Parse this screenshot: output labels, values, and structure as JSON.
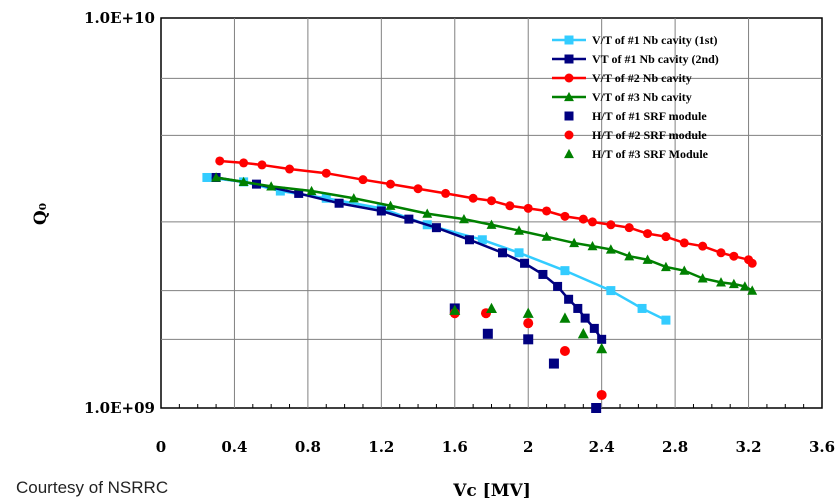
{
  "credit": "Courtesy of NSRRC",
  "chart_data": {
    "type": "scatter",
    "xlabel": "Vc [MV]",
    "ylabel": "Q₀",
    "xlim": [
      0,
      3.6
    ],
    "ylim": [
      1000000000,
      10000000000
    ],
    "y_scale": "log",
    "x_ticks": [
      0,
      0.4,
      0.8,
      1.2,
      1.6,
      2,
      2.4,
      2.8,
      3.2,
      3.6
    ],
    "x_tick_labels": [
      "0",
      "0.4",
      "0.8",
      "1.2",
      "1.6",
      "2",
      "2.4",
      "2.8",
      "3.2",
      "3.6"
    ],
    "y_tick_labels": [
      "1.0E+09",
      "1.0E+10"
    ],
    "y_gridlines": [
      1000000000,
      1500000000,
      2000000000,
      3000000000,
      5000000000,
      7000000000,
      10000000000
    ],
    "grid": true,
    "legend_position": "top-right",
    "series": [
      {
        "name": "V/T of #1 Nb cavity (1st)",
        "color": "#33ccff",
        "style": "line",
        "marker": "square",
        "x": [
          0.25,
          0.45,
          0.65,
          0.9,
          1.2,
          1.45,
          1.75,
          1.95,
          2.2,
          2.45,
          2.62,
          2.75
        ],
        "y": [
          3900000000,
          3800000000,
          3600000000,
          3450000000,
          3250000000,
          2950000000,
          2700000000,
          2500000000,
          2250000000,
          2000000000,
          1800000000,
          1680000000
        ]
      },
      {
        "name": "VT of #1 Nb cavity (2nd)",
        "color": "#000080",
        "style": "line",
        "marker": "square",
        "x": [
          0.3,
          0.52,
          0.75,
          0.97,
          1.2,
          1.35,
          1.5,
          1.68,
          1.86,
          1.98,
          2.08,
          2.16,
          2.22,
          2.27,
          2.31,
          2.36,
          2.4
        ],
        "y": [
          3900000000,
          3750000000,
          3550000000,
          3350000000,
          3200000000,
          3050000000,
          2900000000,
          2700000000,
          2500000000,
          2350000000,
          2200000000,
          2050000000,
          1900000000,
          1800000000,
          1700000000,
          1600000000,
          1500000000
        ]
      },
      {
        "name": "V/T of #2 Nb cavity",
        "color": "#ff0000",
        "style": "line",
        "marker": "circle",
        "x": [
          0.32,
          0.45,
          0.55,
          0.7,
          0.9,
          1.1,
          1.25,
          1.4,
          1.55,
          1.7,
          1.8,
          1.9,
          2.0,
          2.1,
          2.2,
          2.3,
          2.35,
          2.45,
          2.55,
          2.65,
          2.75,
          2.85,
          2.95,
          3.05,
          3.12,
          3.2,
          3.22
        ],
        "y": [
          4300000000,
          4250000000,
          4200000000,
          4100000000,
          4000000000,
          3850000000,
          3750000000,
          3650000000,
          3550000000,
          3450000000,
          3400000000,
          3300000000,
          3250000000,
          3200000000,
          3100000000,
          3050000000,
          3000000000,
          2950000000,
          2900000000,
          2800000000,
          2750000000,
          2650000000,
          2600000000,
          2500000000,
          2450000000,
          2400000000,
          2350000000
        ]
      },
      {
        "name": "V/T of #3 Nb cavity",
        "color": "#008000",
        "style": "line",
        "marker": "triangle",
        "x": [
          0.3,
          0.45,
          0.6,
          0.82,
          1.05,
          1.25,
          1.45,
          1.65,
          1.8,
          1.95,
          2.1,
          2.25,
          2.35,
          2.45,
          2.55,
          2.65,
          2.75,
          2.85,
          2.95,
          3.05,
          3.12,
          3.18,
          3.22
        ],
        "y": [
          3900000000,
          3800000000,
          3700000000,
          3600000000,
          3450000000,
          3300000000,
          3150000000,
          3050000000,
          2950000000,
          2850000000,
          2750000000,
          2650000000,
          2600000000,
          2550000000,
          2450000000,
          2400000000,
          2300000000,
          2250000000,
          2150000000,
          2100000000,
          2080000000,
          2050000000,
          2000000000
        ]
      },
      {
        "name": "H/T of #1 SRF module",
        "color": "#000080",
        "style": "markers",
        "marker": "square",
        "x": [
          1.6,
          1.78,
          2.0,
          2.14,
          2.37
        ],
        "y": [
          1800000000,
          1550000000,
          1500000000,
          1300000000,
          1000000000
        ]
      },
      {
        "name": "H/T of #2 SRF module",
        "color": "#ff0000",
        "style": "markers",
        "marker": "circle",
        "x": [
          1.6,
          1.77,
          2.0,
          2.2,
          2.4
        ],
        "y": [
          1750000000,
          1750000000,
          1650000000,
          1400000000,
          1080000000
        ]
      },
      {
        "name": "H/T of #3 SRF Module",
        "color": "#008000",
        "style": "markers",
        "marker": "triangle",
        "x": [
          1.6,
          1.8,
          2.0,
          2.2,
          2.3,
          2.4
        ],
        "y": [
          1780000000,
          1800000000,
          1750000000,
          1700000000,
          1550000000,
          1420000000
        ]
      }
    ]
  }
}
